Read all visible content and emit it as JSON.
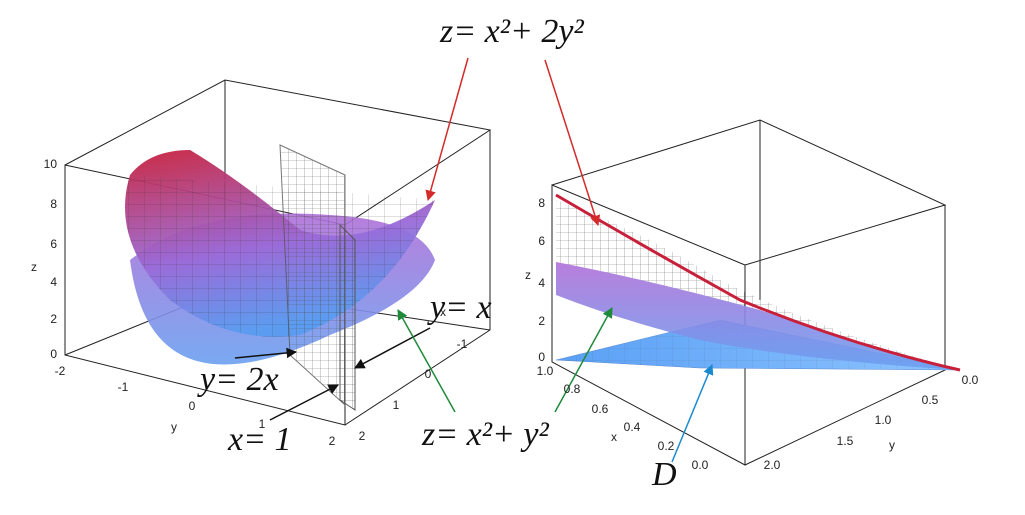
{
  "annotations": [
    "z= x²+ 2y²",
    "y= x",
    "y= 2x",
    "x= 1",
    "z= x²+ y²",
    "D"
  ],
  "left_plot": {
    "z_label": "z",
    "z_ticks": [
      "0",
      "2",
      "4",
      "6",
      "8",
      "10"
    ],
    "y_label": "y",
    "y_ticks": [
      "-2",
      "-1",
      "0",
      "1",
      "2"
    ],
    "x_label": "x",
    "x_ticks": [
      "-1",
      "0",
      "1",
      "2"
    ]
  },
  "right_plot": {
    "z_label": "z",
    "z_ticks": [
      "0",
      "2",
      "4",
      "6",
      "8"
    ],
    "x_label": "x",
    "x_ticks": [
      "1.0",
      "0.8",
      "0.6",
      "0.4",
      "0.2",
      "0.0"
    ],
    "y_label": "y",
    "y_ticks": [
      "0.0",
      "0.5",
      "1.0",
      "1.5",
      "2.0"
    ]
  }
}
